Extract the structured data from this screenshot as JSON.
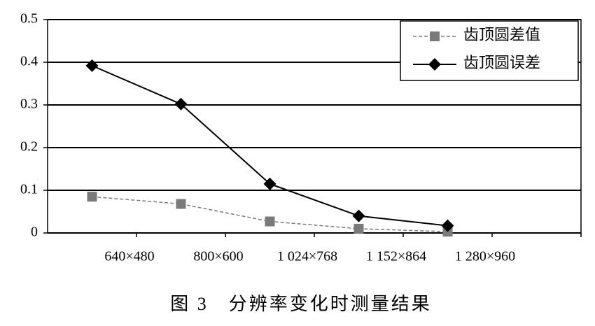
{
  "chart_data": {
    "type": "line",
    "caption": "图 3　分辨率变化时测量结果",
    "categories": [
      "640×480",
      "800×600",
      "1 024×768",
      "1 152×864",
      "1 280×960",
      null
    ],
    "series": [
      {
        "name": "齿顶圆差值",
        "color": "#7a7a7a",
        "marker": "square",
        "dashed": true,
        "values": [
          0.085,
          0.068,
          0.027,
          0.01,
          0.003,
          null
        ]
      },
      {
        "name": "齿顶圆误差",
        "color": "#000000",
        "marker": "diamond",
        "dashed": false,
        "values": [
          0.392,
          0.302,
          0.115,
          0.04,
          0.017,
          null
        ]
      }
    ],
    "ylim": [
      0,
      0.5
    ],
    "yticks": [
      0,
      0.1,
      0.2,
      0.3,
      0.4,
      0.5
    ],
    "grid": true,
    "legend": "top-right"
  }
}
